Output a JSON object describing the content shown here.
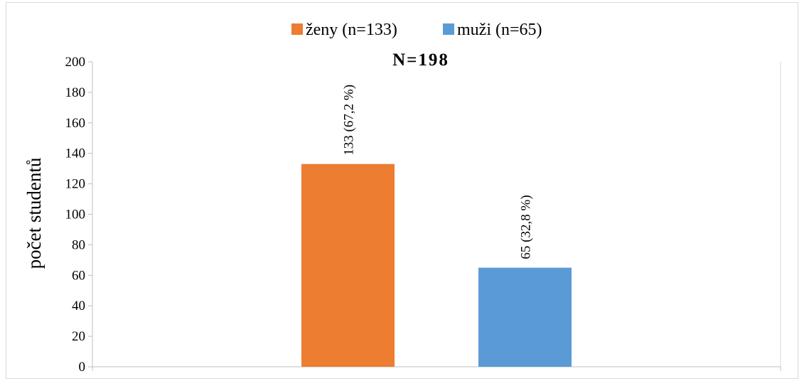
{
  "chart_data": {
    "type": "bar",
    "title": "N=198",
    "xlabel": "",
    "ylabel": "počet studentů",
    "ylim": [
      0,
      200
    ],
    "yticks": [
      0,
      20,
      40,
      60,
      80,
      100,
      120,
      140,
      160,
      180,
      200
    ],
    "ytick_labels": [
      "0",
      "20",
      "40",
      "60",
      "80",
      "100",
      "120",
      "140",
      "160",
      "180",
      "200"
    ],
    "categories": [
      ""
    ],
    "series": [
      {
        "name": "ženy (n=133)",
        "values": [
          133
        ],
        "color": "#ED7D31",
        "data_label": "133 (67,2 %)"
      },
      {
        "name": "muži (n=65)",
        "values": [
          65
        ],
        "color": "#5B9BD5",
        "data_label": "65 (32,8 %)"
      }
    ],
    "legend_position": "top-center",
    "grid": false
  }
}
